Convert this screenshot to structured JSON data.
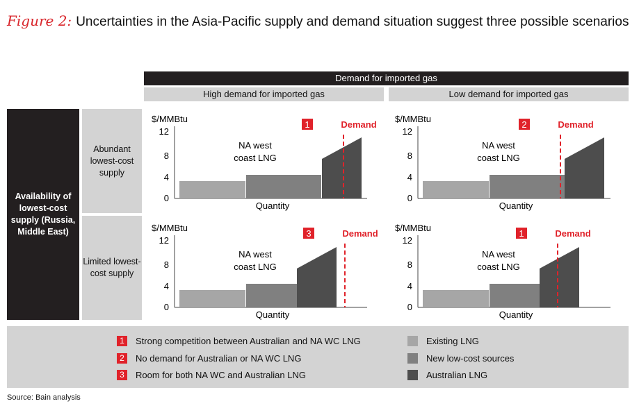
{
  "figure": {
    "label": "Figure 2:",
    "title": "Uncertainties in the Asia-Pacific supply and demand situation suggest three possible scenarios"
  },
  "header": {
    "main": "Demand for imported gas",
    "columns": [
      "High demand for imported gas",
      "Low demand for imported gas"
    ]
  },
  "rows": {
    "main": "Availability of lowest-cost supply (Russia, Middle East)",
    "items": [
      "Abundant lowest-cost supply",
      "Limited lowest-cost supply"
    ]
  },
  "colors": {
    "existing": "#a6a6a6",
    "new_low_cost": "#808080",
    "australian": "#4d4d4d",
    "accent": "#e0222a"
  },
  "panels": [
    {
      "scenario": "1",
      "demand_label": "Demand",
      "y_unit": "$/MMBtu",
      "x_label": "Quantity",
      "annotation": "NA west coast LNG",
      "y_ticks": [
        "12",
        "8",
        "4",
        "0"
      ]
    },
    {
      "scenario": "2",
      "demand_label": "Demand",
      "y_unit": "$/MMBtu",
      "x_label": "Quantity",
      "annotation": "NA west coast LNG",
      "y_ticks": [
        "12",
        "8",
        "4",
        "0"
      ]
    },
    {
      "scenario": "3",
      "demand_label": "Demand",
      "y_unit": "$/MMBtu",
      "x_label": "Quantity",
      "annotation": "NA west coast LNG",
      "y_ticks": [
        "12",
        "8",
        "4",
        "0"
      ]
    },
    {
      "scenario": "1",
      "demand_label": "Demand",
      "y_unit": "$/MMBtu",
      "x_label": "Quantity",
      "annotation": "NA west coast LNG",
      "y_ticks": [
        "12",
        "8",
        "4",
        "0"
      ]
    }
  ],
  "legend": {
    "scenarios": [
      {
        "num": "1",
        "text": "Strong competition between Australian and NA WC LNG"
      },
      {
        "num": "2",
        "text": "No demand for Australian or NA WC LNG"
      },
      {
        "num": "3",
        "text": "Room for both NA WC and Australian LNG"
      }
    ],
    "sources": [
      "Existing LNG",
      "New low-cost sources",
      "Australian LNG"
    ]
  },
  "source": "Source: Bain analysis"
}
